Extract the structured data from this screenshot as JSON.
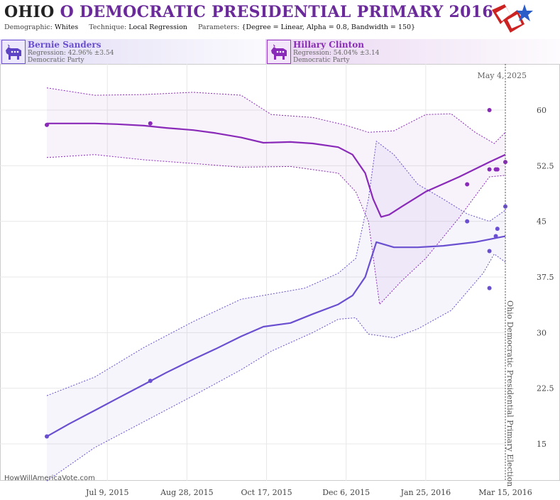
{
  "header": {
    "state": "OHIO",
    "title_rest": "O DEMOCRATIC PRESIDENTIAL PRIMARY 2016",
    "demographic_label": "Demographic:",
    "demographic": "Whites",
    "technique_label": "Technique:",
    "technique": "Local Regression",
    "parameters_label": "Parameters:",
    "parameters": "{Degree = Linear, Alpha = 0.8, Bandwidth = 150}"
  },
  "candidates": [
    {
      "name": "Bernie Sanders",
      "regression": "Regression: 42.96% ±3.54",
      "party": "Democratic Party",
      "color": "#6a4fd0"
    },
    {
      "name": "Hillary Clinton",
      "regression": "Regression: 54.04% ±3.14",
      "party": "Democratic Party",
      "color": "#8a2ab8"
    }
  ],
  "watermark": "HowWillAmericaVote.com",
  "chart_data": {
    "type": "line",
    "x_ticks": [
      "Jul 9, 2015",
      "Aug 28, 2015",
      "Oct 17, 2015",
      "Dec 6, 2015",
      "Jan 25, 2016",
      "Mar 15, 2016"
    ],
    "y_ticks": [
      "15",
      "22.5",
      "30",
      "37.5",
      "45",
      "52.5",
      "60"
    ],
    "ylim": [
      10,
      65
    ],
    "xlim": [
      "2015-06-01",
      "2016-03-20"
    ],
    "grid": true,
    "event_label": "Ohio Democratic Presidential Primary Election",
    "event_date": "2016-03-15",
    "today_label": "May 4, 2025",
    "series": [
      {
        "name": "Hillary Clinton",
        "color": "#8a2ab8",
        "line": [
          [
            "2015-06-01",
            58.2
          ],
          [
            "2015-06-15",
            58.2
          ],
          [
            "2015-07-01",
            58.2
          ],
          [
            "2015-07-15",
            58.1
          ],
          [
            "2015-08-01",
            57.9
          ],
          [
            "2015-08-15",
            57.6
          ],
          [
            "2015-09-01",
            57.3
          ],
          [
            "2015-09-15",
            56.9
          ],
          [
            "2015-10-01",
            56.3
          ],
          [
            "2015-10-15",
            55.6
          ],
          [
            "2015-11-01",
            55.7
          ],
          [
            "2015-11-15",
            55.5
          ],
          [
            "2015-12-01",
            55.0
          ],
          [
            "2015-12-10",
            54.0
          ],
          [
            "2015-12-18",
            51.5
          ],
          [
            "2015-12-23",
            48.0
          ],
          [
            "2015-12-28",
            45.6
          ],
          [
            "2016-01-02",
            45.9
          ],
          [
            "2016-01-10",
            47.0
          ],
          [
            "2016-01-25",
            49.0
          ],
          [
            "2016-02-15",
            51.0
          ],
          [
            "2016-03-05",
            53.0
          ],
          [
            "2016-03-15",
            54.0
          ]
        ],
        "upper": [
          [
            "2015-06-01",
            63.0
          ],
          [
            "2015-07-01",
            62.0
          ],
          [
            "2015-08-01",
            62.1
          ],
          [
            "2015-09-01",
            62.4
          ],
          [
            "2015-10-01",
            62.0
          ],
          [
            "2015-10-20",
            59.4
          ],
          [
            "2015-11-15",
            59.0
          ],
          [
            "2015-12-05",
            58.0
          ],
          [
            "2015-12-20",
            57.0
          ],
          [
            "2016-01-05",
            57.2
          ],
          [
            "2016-01-25",
            59.4
          ],
          [
            "2016-02-10",
            59.5
          ],
          [
            "2016-02-25",
            57.0
          ],
          [
            "2016-03-08",
            55.5
          ],
          [
            "2016-03-15",
            57.0
          ]
        ],
        "lower": [
          [
            "2015-06-01",
            53.6
          ],
          [
            "2015-07-01",
            54.0
          ],
          [
            "2015-08-01",
            53.3
          ],
          [
            "2015-09-01",
            52.8
          ],
          [
            "2015-10-01",
            52.3
          ],
          [
            "2015-11-01",
            52.4
          ],
          [
            "2015-12-01",
            51.5
          ],
          [
            "2015-12-12",
            49.0
          ],
          [
            "2015-12-20",
            45.0
          ],
          [
            "2015-12-27",
            33.8
          ],
          [
            "2016-01-10",
            37.0
          ],
          [
            "2016-01-25",
            40.0
          ],
          [
            "2016-02-15",
            45.5
          ],
          [
            "2016-03-05",
            51.0
          ],
          [
            "2016-03-15",
            51.2
          ]
        ],
        "points": [
          [
            "2015-06-01",
            58.0
          ],
          [
            "2015-08-05",
            58.2
          ],
          [
            "2016-02-20",
            50.0
          ],
          [
            "2016-03-05",
            60.0
          ],
          [
            "2016-03-05",
            52.0
          ],
          [
            "2016-03-09",
            52.0
          ],
          [
            "2016-03-10",
            52.0
          ],
          [
            "2016-03-15",
            53.0
          ]
        ]
      },
      {
        "name": "Bernie Sanders",
        "color": "#6a4fd0",
        "line": [
          [
            "2015-06-01",
            16.0
          ],
          [
            "2015-06-15",
            17.7
          ],
          [
            "2015-07-01",
            19.5
          ],
          [
            "2015-07-15",
            21.1
          ],
          [
            "2015-08-01",
            23.0
          ],
          [
            "2015-08-15",
            24.6
          ],
          [
            "2015-09-01",
            26.4
          ],
          [
            "2015-09-15",
            27.8
          ],
          [
            "2015-10-01",
            29.5
          ],
          [
            "2015-10-15",
            30.8
          ],
          [
            "2015-11-01",
            31.3
          ],
          [
            "2015-11-15",
            32.5
          ],
          [
            "2015-12-01",
            33.8
          ],
          [
            "2015-12-10",
            35.0
          ],
          [
            "2015-12-18",
            37.5
          ],
          [
            "2015-12-25",
            42.2
          ],
          [
            "2016-01-05",
            41.5
          ],
          [
            "2016-01-20",
            41.5
          ],
          [
            "2016-02-05",
            41.7
          ],
          [
            "2016-02-25",
            42.2
          ],
          [
            "2016-03-15",
            43.0
          ]
        ],
        "upper": [
          [
            "2015-06-01",
            21.5
          ],
          [
            "2015-07-01",
            24.0
          ],
          [
            "2015-08-01",
            28.0
          ],
          [
            "2015-09-01",
            31.5
          ],
          [
            "2015-10-01",
            34.5
          ],
          [
            "2015-10-20",
            35.2
          ],
          [
            "2015-11-10",
            36.0
          ],
          [
            "2015-12-01",
            38.0
          ],
          [
            "2015-12-12",
            40.0
          ],
          [
            "2015-12-20",
            48.0
          ],
          [
            "2015-12-25",
            55.8
          ],
          [
            "2016-01-05",
            54.0
          ],
          [
            "2016-01-20",
            50.0
          ],
          [
            "2016-02-05",
            48.0
          ],
          [
            "2016-02-20",
            46.0
          ],
          [
            "2016-03-05",
            45.0
          ],
          [
            "2016-03-15",
            46.5
          ]
        ],
        "lower": [
          [
            "2015-06-01",
            10.0
          ],
          [
            "2015-07-01",
            14.5
          ],
          [
            "2015-08-01",
            18.0
          ],
          [
            "2015-09-01",
            21.5
          ],
          [
            "2015-10-01",
            25.0
          ],
          [
            "2015-10-20",
            27.5
          ],
          [
            "2015-11-15",
            30.0
          ],
          [
            "2015-12-01",
            31.8
          ],
          [
            "2015-12-12",
            32.0
          ],
          [
            "2015-12-20",
            29.8
          ],
          [
            "2016-01-05",
            29.3
          ],
          [
            "2016-01-20",
            30.5
          ],
          [
            "2016-02-10",
            33.0
          ],
          [
            "2016-03-01",
            38.0
          ],
          [
            "2016-03-08",
            40.6
          ],
          [
            "2016-03-15",
            39.5
          ]
        ],
        "points": [
          [
            "2015-06-01",
            16.0
          ],
          [
            "2015-08-05",
            23.5
          ],
          [
            "2016-02-20",
            45.0
          ],
          [
            "2016-03-05",
            41.0
          ],
          [
            "2016-03-05",
            36.0
          ],
          [
            "2016-03-09",
            43.0
          ],
          [
            "2016-03-10",
            44.0
          ],
          [
            "2016-03-15",
            47.0
          ]
        ]
      }
    ]
  }
}
